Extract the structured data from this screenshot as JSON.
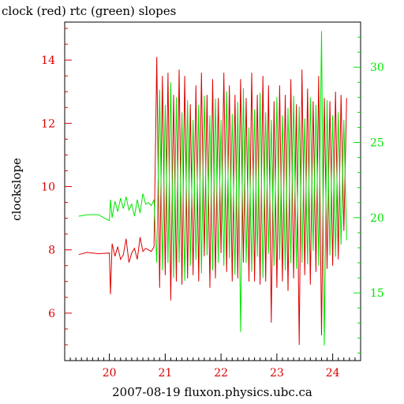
{
  "chart_data": {
    "type": "line",
    "title": "clock (red) rtc (green) slopes",
    "ylabel": "clockslope",
    "xlabel": "2007-08-19 fluxon.physics.ubc.ca",
    "xlim": [
      19.2,
      24.5
    ],
    "x_ticks": [
      "20",
      "21",
      "22",
      "23",
      "24"
    ],
    "ylim_left": [
      4.5,
      15.2
    ],
    "y_ticks_left": [
      "6",
      "8",
      "10",
      "12",
      "14"
    ],
    "ylim_right": [
      10.5,
      33.0
    ],
    "y_ticks_right": [
      "15",
      "20",
      "25",
      "30"
    ],
    "series": [
      {
        "name": "clock",
        "axis": "left",
        "color": "#dd0000",
        "x": [
          19.45,
          19.6,
          19.8,
          20.0,
          20.02,
          20.05,
          20.1,
          20.15,
          20.2,
          20.25,
          20.3,
          20.35,
          20.4,
          20.45,
          20.5,
          20.55,
          20.6,
          20.65,
          20.7,
          20.75,
          20.8,
          20.85,
          20.9,
          20.95,
          21.0,
          21.05,
          21.1,
          21.15,
          21.2,
          21.25,
          21.3,
          21.35,
          21.4,
          21.45,
          21.5,
          21.55,
          21.6,
          21.65,
          21.7,
          21.75,
          21.8,
          21.85,
          21.9,
          21.95,
          22.0,
          22.05,
          22.1,
          22.15,
          22.2,
          22.25,
          22.3,
          22.35,
          22.4,
          22.45,
          22.5,
          22.55,
          22.6,
          22.65,
          22.7,
          22.75,
          22.8,
          22.85,
          22.9,
          22.95,
          23.0,
          23.05,
          23.1,
          23.15,
          23.2,
          23.25,
          23.3,
          23.35,
          23.4,
          23.45,
          23.5,
          23.55,
          23.6,
          23.65,
          23.7,
          23.75,
          23.8,
          23.85,
          23.9,
          23.95,
          24.0,
          24.05,
          24.1,
          24.15,
          24.2,
          24.25
        ],
        "y": [
          7.85,
          7.92,
          7.88,
          7.9,
          6.6,
          8.2,
          7.8,
          8.1,
          7.7,
          7.85,
          8.35,
          7.6,
          7.9,
          8.05,
          7.7,
          8.4,
          7.95,
          8.05,
          8.0,
          7.95,
          8.1,
          14.1,
          6.8,
          13.5,
          7.2,
          13.6,
          6.4,
          12.9,
          7.0,
          13.7,
          6.9,
          13.5,
          7.1,
          12.6,
          7.2,
          13.2,
          7.0,
          13.6,
          7.8,
          12.9,
          6.8,
          13.4,
          7.1,
          12.8,
          7.9,
          13.6,
          7.3,
          13.2,
          7.0,
          12.9,
          7.1,
          13.4,
          7.6,
          12.8,
          7.0,
          13.6,
          7.0,
          12.9,
          6.9,
          13.5,
          7.0,
          13.2,
          5.7,
          12.7,
          6.8,
          13.2,
          7.0,
          12.9,
          6.7,
          13.4,
          7.1,
          12.6,
          5.0,
          13.7,
          7.2,
          13.1,
          6.9,
          12.7,
          7.3,
          13.5,
          5.3,
          12.8,
          7.4,
          12.7,
          7.5,
          13.0,
          7.7,
          12.9,
          8.6,
          12.8
        ]
      },
      {
        "name": "rtc",
        "axis": "right",
        "color": "#00e600",
        "x": [
          19.45,
          19.6,
          19.8,
          20.0,
          20.02,
          20.05,
          20.1,
          20.15,
          20.2,
          20.25,
          20.3,
          20.35,
          20.4,
          20.45,
          20.5,
          20.55,
          20.6,
          20.65,
          20.7,
          20.75,
          20.8,
          20.85,
          20.9,
          20.95,
          21.0,
          21.05,
          21.1,
          21.15,
          21.2,
          21.25,
          21.3,
          21.35,
          21.4,
          21.45,
          21.5,
          21.55,
          21.6,
          21.65,
          21.7,
          21.75,
          21.8,
          21.85,
          21.9,
          21.95,
          22.0,
          22.05,
          22.1,
          22.15,
          22.2,
          22.25,
          22.3,
          22.35,
          22.4,
          22.45,
          22.5,
          22.55,
          22.6,
          22.65,
          22.7,
          22.75,
          22.8,
          22.85,
          22.9,
          22.95,
          23.0,
          23.05,
          23.1,
          23.15,
          23.2,
          23.25,
          23.3,
          23.35,
          23.4,
          23.45,
          23.5,
          23.55,
          23.6,
          23.65,
          23.7,
          23.75,
          23.8,
          23.85,
          23.9,
          23.95,
          24.0,
          24.05,
          24.1,
          24.15,
          24.2,
          24.25
        ],
        "y": [
          20.1,
          20.2,
          20.2,
          19.8,
          21.2,
          20.0,
          21.1,
          20.4,
          21.3,
          20.6,
          21.4,
          20.5,
          20.9,
          20.1,
          21.2,
          20.3,
          21.6,
          20.9,
          21.0,
          20.8,
          21.2,
          17.0,
          28.5,
          16.5,
          27.5,
          17.0,
          29.0,
          16.0,
          28.0,
          17.0,
          27.0,
          15.8,
          27.8,
          16.8,
          26.5,
          17.2,
          27.5,
          16.3,
          28.1,
          17.5,
          26.8,
          16.5,
          27.9,
          17.0,
          26.5,
          16.8,
          28.4,
          17.3,
          26.9,
          16.2,
          27.7,
          12.4,
          28.6,
          17.0,
          26.0,
          16.4,
          27.2,
          17.4,
          28.3,
          16.0,
          27.0,
          17.6,
          26.5,
          16.8,
          28.0,
          17.2,
          26.8,
          16.5,
          27.3,
          17.0,
          28.1,
          16.6,
          27.4,
          17.0,
          26.6,
          16.9,
          28.0,
          17.8,
          27.5,
          16.8,
          32.4,
          11.5,
          27.8,
          17.5,
          26.8,
          17.4,
          27.0,
          18.2,
          26.5,
          18.5
        ]
      }
    ]
  },
  "colors": {
    "left_axis": "#dd0000",
    "right_axis": "#00e600",
    "frame": "#000000"
  }
}
